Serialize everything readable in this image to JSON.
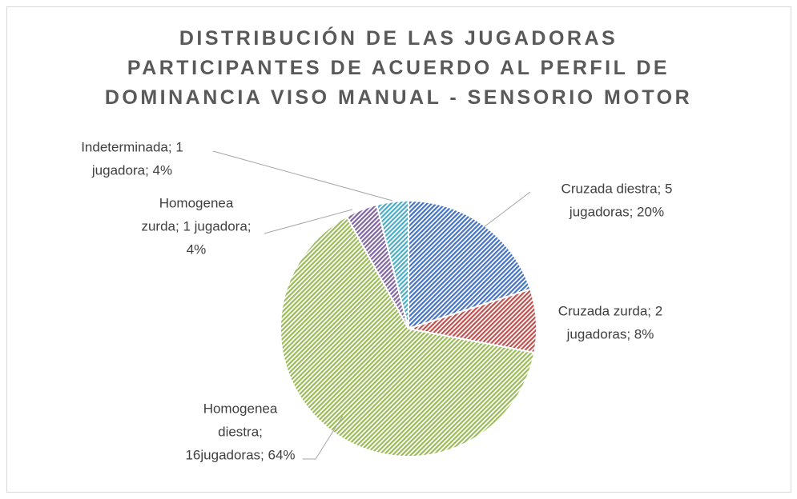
{
  "chart_data": {
    "type": "pie",
    "title": "DISTRIBUCIÓN DE LAS JUGADORAS PARTICIPANTES DE ACUERDO AL PERFIL DE DOMINANCIA VISO MANUAL - SENSORIO MOTOR",
    "categories": [
      "Cruzada diestra",
      "Cruzada zurda",
      "Homogenea diestra",
      "Homogenea zurda",
      "Indeterminada"
    ],
    "values": [
      20,
      8,
      64,
      4,
      4
    ],
    "value_labels": [
      [
        "Cruzada diestra; 5",
        "jugadoras; 20%"
      ],
      [
        "Cruzada zurda; 2",
        "jugadoras; 8%"
      ],
      [
        "Homogenea",
        "diestra;",
        "16jugadoras; 64%"
      ],
      [
        "Homogenea",
        "zurda; 1 jugadora;",
        "4%"
      ],
      [
        "Indeterminada; 1",
        "jugadora; 4%"
      ]
    ],
    "colors": [
      "#4472c4",
      "#c0504d",
      "#9bbb59",
      "#8064a2",
      "#4bacc6"
    ]
  }
}
